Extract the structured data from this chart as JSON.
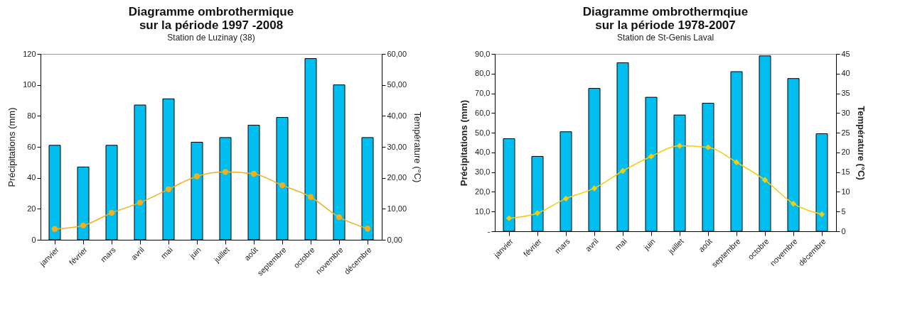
{
  "chart_data": [
    {
      "type": "bar",
      "title": "Diagramme ombrothermique\nsur la période 1997 -2008",
      "subtitle": "Station de Luzinay (38)",
      "ylabel": "Précipitations (mm)",
      "y2label": "Température (°C)",
      "categories": [
        "janvier",
        "février",
        "mars",
        "avril",
        "mai",
        "juin",
        "juillet",
        "août",
        "septembre",
        "octobre",
        "novembre",
        "décembre"
      ],
      "series": [
        {
          "color": "#00bff0",
          "values": [
            61,
            47,
            61,
            87,
            91,
            63,
            66,
            74,
            79,
            117,
            100,
            66
          ]
        },
        {
          "type": "line",
          "axis": "y2",
          "color": "#f0b020",
          "values": [
            3.5,
            4.6,
            8.7,
            12.0,
            16.3,
            20.5,
            21.9,
            21.3,
            17.6,
            13.8,
            7.3,
            3.6
          ]
        }
      ],
      "ylim": [
        0,
        120
      ],
      "yticks": [
        0,
        20,
        40,
        60,
        80,
        100,
        120
      ],
      "y2lim": [
        0,
        60
      ],
      "y2ticks": [
        {
          "value": 0,
          "label": "0,00"
        },
        {
          "value": 10,
          "label": "10,00"
        },
        {
          "value": 20,
          "label": "20,00"
        },
        {
          "value": 30,
          "label": "30,00"
        },
        {
          "value": 40,
          "label": "40,00"
        },
        {
          "value": 50,
          "label": "50,00"
        },
        {
          "value": 60,
          "label": "60,00"
        }
      ],
      "marker": "circle"
    },
    {
      "type": "bar",
      "title": "Diagramme ombrothermqiue\nsur la période 1978-2007",
      "subtitle": "Station de St-Genis Laval",
      "ylabel": "Précipitations (mm)",
      "y2label": "Température (°C)",
      "categories": [
        "janvier",
        "février",
        "mars",
        "avril",
        "mai",
        "juin",
        "juillet",
        "août",
        "septembre",
        "octobre",
        "novembre",
        "décembre"
      ],
      "series": [
        {
          "color": "#00bff0",
          "values": [
            47,
            38,
            50.5,
            72.5,
            85.5,
            68,
            59,
            65,
            81,
            89,
            77.5,
            49.5
          ]
        },
        {
          "type": "line",
          "axis": "y2",
          "color": "#f5cc10",
          "values": [
            3.3,
            4.6,
            8.3,
            10.9,
            15.3,
            19.0,
            21.7,
            21.3,
            17.5,
            13.0,
            7.0,
            4.3
          ]
        }
      ],
      "ylim": [
        0,
        90
      ],
      "yticks": [
        {
          "value": 0,
          "label": "-"
        },
        {
          "value": 10,
          "label": "10,0"
        },
        {
          "value": 20,
          "label": "20,0"
        },
        {
          "value": 30,
          "label": "30,0"
        },
        {
          "value": 40,
          "label": "40,0"
        },
        {
          "value": 50,
          "label": "50,0"
        },
        {
          "value": 60,
          "label": "60,0"
        },
        {
          "value": 70,
          "label": "70,0"
        },
        {
          "value": 80,
          "label": "80,0"
        },
        {
          "value": 90,
          "label": "90,0"
        }
      ],
      "y2lim": [
        0,
        45
      ],
      "y2ticks": [
        0,
        5,
        10,
        15,
        20,
        25,
        30,
        35,
        40,
        45
      ],
      "marker": "diamond"
    }
  ]
}
